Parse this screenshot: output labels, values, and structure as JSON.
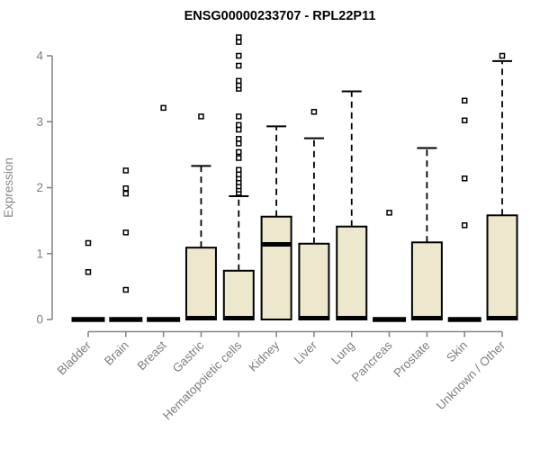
{
  "chart_data": {
    "type": "boxplot",
    "title": "ENSG00000233707 - RPL22P11",
    "ylabel": "Expression",
    "xlabel": "",
    "ylim": [
      0,
      4.3
    ],
    "yticks": [
      0,
      1,
      2,
      3,
      4
    ],
    "grid": false,
    "legend": "none",
    "categories": [
      "Bladder",
      "Brain",
      "Breast",
      "Gastric",
      "Hematopoietic cells",
      "Kidney",
      "Liver",
      "Lung",
      "Pancreas",
      "Prostate",
      "Skin",
      "Unknown / Other"
    ],
    "series": [
      {
        "category": "Bladder",
        "q1": 0,
        "median": 0,
        "q3": 0,
        "whisker_low": 0,
        "whisker_high": 0,
        "outliers": [
          0.72,
          1.16
        ]
      },
      {
        "category": "Brain",
        "q1": 0,
        "median": 0,
        "q3": 0,
        "whisker_low": 0,
        "whisker_high": 0,
        "outliers": [
          0.45,
          1.32,
          1.91,
          1.99,
          2.26
        ]
      },
      {
        "category": "Breast",
        "q1": 0,
        "median": 0,
        "q3": 0,
        "whisker_low": 0,
        "whisker_high": 0,
        "outliers": [
          3.21
        ]
      },
      {
        "category": "Gastric",
        "q1": 0,
        "median": 0.02,
        "q3": 1.09,
        "whisker_low": 0,
        "whisker_high": 2.33,
        "outliers": [
          3.08
        ]
      },
      {
        "category": "Hematopoietic cells",
        "q1": 0,
        "median": 0.02,
        "q3": 0.74,
        "whisker_low": 0,
        "whisker_high": 1.87,
        "outliers": [
          1.92,
          1.97,
          2.02,
          2.08,
          2.14,
          2.2,
          2.27,
          2.45,
          2.54,
          2.67,
          2.74,
          2.88,
          2.95,
          3.08,
          3.5,
          3.55,
          3.62,
          3.85,
          4.0,
          4.21,
          4.28
        ]
      },
      {
        "category": "Kidney",
        "q1": 0,
        "median": 1.14,
        "q3": 1.56,
        "whisker_low": 0,
        "whisker_high": 2.93,
        "outliers": []
      },
      {
        "category": "Liver",
        "q1": 0,
        "median": 0.02,
        "q3": 1.15,
        "whisker_low": 0,
        "whisker_high": 2.75,
        "outliers": [
          3.15
        ]
      },
      {
        "category": "Lung",
        "q1": 0,
        "median": 0.02,
        "q3": 1.41,
        "whisker_low": 0,
        "whisker_high": 3.46,
        "outliers": []
      },
      {
        "category": "Pancreas",
        "q1": 0,
        "median": 0,
        "q3": 0,
        "whisker_low": 0,
        "whisker_high": 0,
        "outliers": [
          1.62
        ]
      },
      {
        "category": "Prostate",
        "q1": 0,
        "median": 0.02,
        "q3": 1.17,
        "whisker_low": 0,
        "whisker_high": 2.6,
        "outliers": []
      },
      {
        "category": "Skin",
        "q1": 0,
        "median": 0,
        "q3": 0,
        "whisker_low": 0,
        "whisker_high": 0,
        "outliers": [
          1.43,
          2.14,
          3.02,
          3.32
        ]
      },
      {
        "category": "Unknown / Other",
        "q1": 0,
        "median": 0.02,
        "q3": 1.58,
        "whisker_low": 0,
        "whisker_high": 3.92,
        "outliers": [
          4.0
        ]
      }
    ],
    "colors": {
      "box_fill": "#ECE7CD",
      "box_stroke": "#000000",
      "median": "#000000",
      "whisker": "#000000",
      "outlier_stroke": "#000000",
      "outlier_fill": "#ffffff",
      "axis": "#878787",
      "tick_label": "#7E7E7E",
      "title": "#000000"
    }
  }
}
